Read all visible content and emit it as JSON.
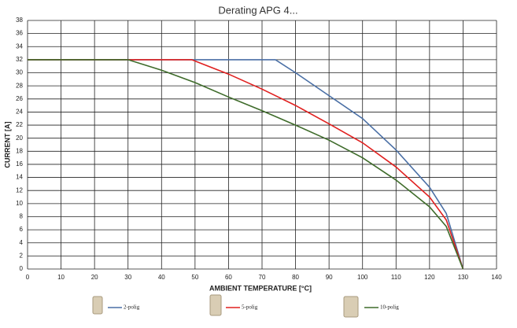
{
  "chart_data": {
    "type": "line",
    "title": "Derating APG 4...",
    "x_label": "AMBIENT TEMPERATURE [°C]",
    "y_label": "CURRENT [A]",
    "xlim": [
      0,
      140
    ],
    "xticks": [
      0,
      10,
      20,
      30,
      40,
      50,
      60,
      70,
      80,
      90,
      100,
      110,
      120,
      130,
      140
    ],
    "ylim": [
      0,
      38
    ],
    "yticks": [
      0,
      2,
      4,
      6,
      8,
      10,
      12,
      14,
      16,
      18,
      20,
      22,
      24,
      26,
      28,
      30,
      32,
      34,
      36,
      38
    ],
    "grid": true,
    "legend": "bottom",
    "series": [
      {
        "name": "2-polig",
        "color": "#4a6fa5",
        "x": [
          0,
          74,
          80,
          90,
          100,
          110,
          120,
          125,
          130
        ],
        "values": [
          32,
          32,
          30,
          26.5,
          23,
          18.2,
          12.5,
          8.5,
          0
        ]
      },
      {
        "name": "5-polig",
        "color": "#e0201f",
        "x": [
          0,
          49,
          60,
          70,
          80,
          90,
          100,
          110,
          120,
          125,
          130
        ],
        "values": [
          32,
          32,
          29.8,
          27.5,
          25,
          22.2,
          19.3,
          15.6,
          11,
          7.5,
          0
        ]
      },
      {
        "name": "10-polig",
        "color": "#3e6b2a",
        "x": [
          0,
          30,
          40,
          50,
          60,
          70,
          80,
          90,
          100,
          110,
          120,
          125,
          130
        ],
        "values": [
          32,
          32,
          30.4,
          28.5,
          26.3,
          24.2,
          22,
          19.7,
          17,
          13.6,
          9.5,
          6.5,
          0
        ]
      }
    ]
  }
}
